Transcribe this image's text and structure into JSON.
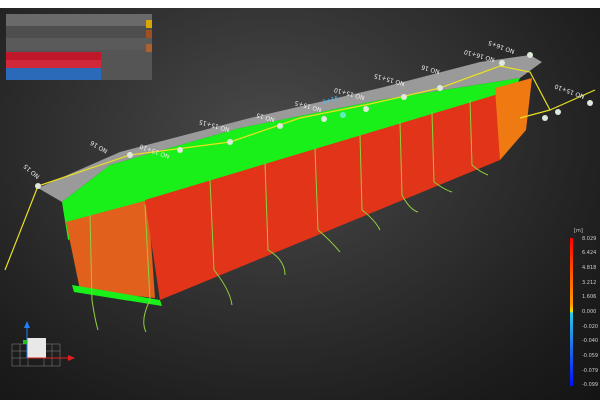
{
  "viewer": {
    "station_labels": [
      "NO 16+5",
      "NO 16+10",
      "NO 16",
      "NO 15+15",
      "NO 15+10",
      "NO 15+5",
      "1+15",
      "NO 15",
      "NO 15+15",
      "NO 15+10",
      "NO 16",
      "NO 15+10",
      "NO 15"
    ],
    "selected_label": "1+15"
  },
  "legend": {
    "unit": "[m]",
    "ticks": [
      "8.029",
      "6.424",
      "4.818",
      "3.212",
      "1.606",
      "0.000",
      "-0.020",
      "-0.040",
      "-0.059",
      "-0.079",
      "-0.099"
    ],
    "colors": {
      "max": "#ff0000",
      "mid": "#e8e800",
      "zero": "#30c8e8",
      "min": "#0010ff"
    }
  },
  "gizmo": {
    "axes": [
      "x",
      "y",
      "z"
    ],
    "colors": {
      "x": "#e02020",
      "y": "#20c020",
      "z": "#2080ff"
    }
  },
  "colors": {
    "surface_top": "#00ff00",
    "wall": "#e83018",
    "end_wall": "#f07010",
    "route": "#e8e020",
    "cloud": "#a8a8a8"
  }
}
